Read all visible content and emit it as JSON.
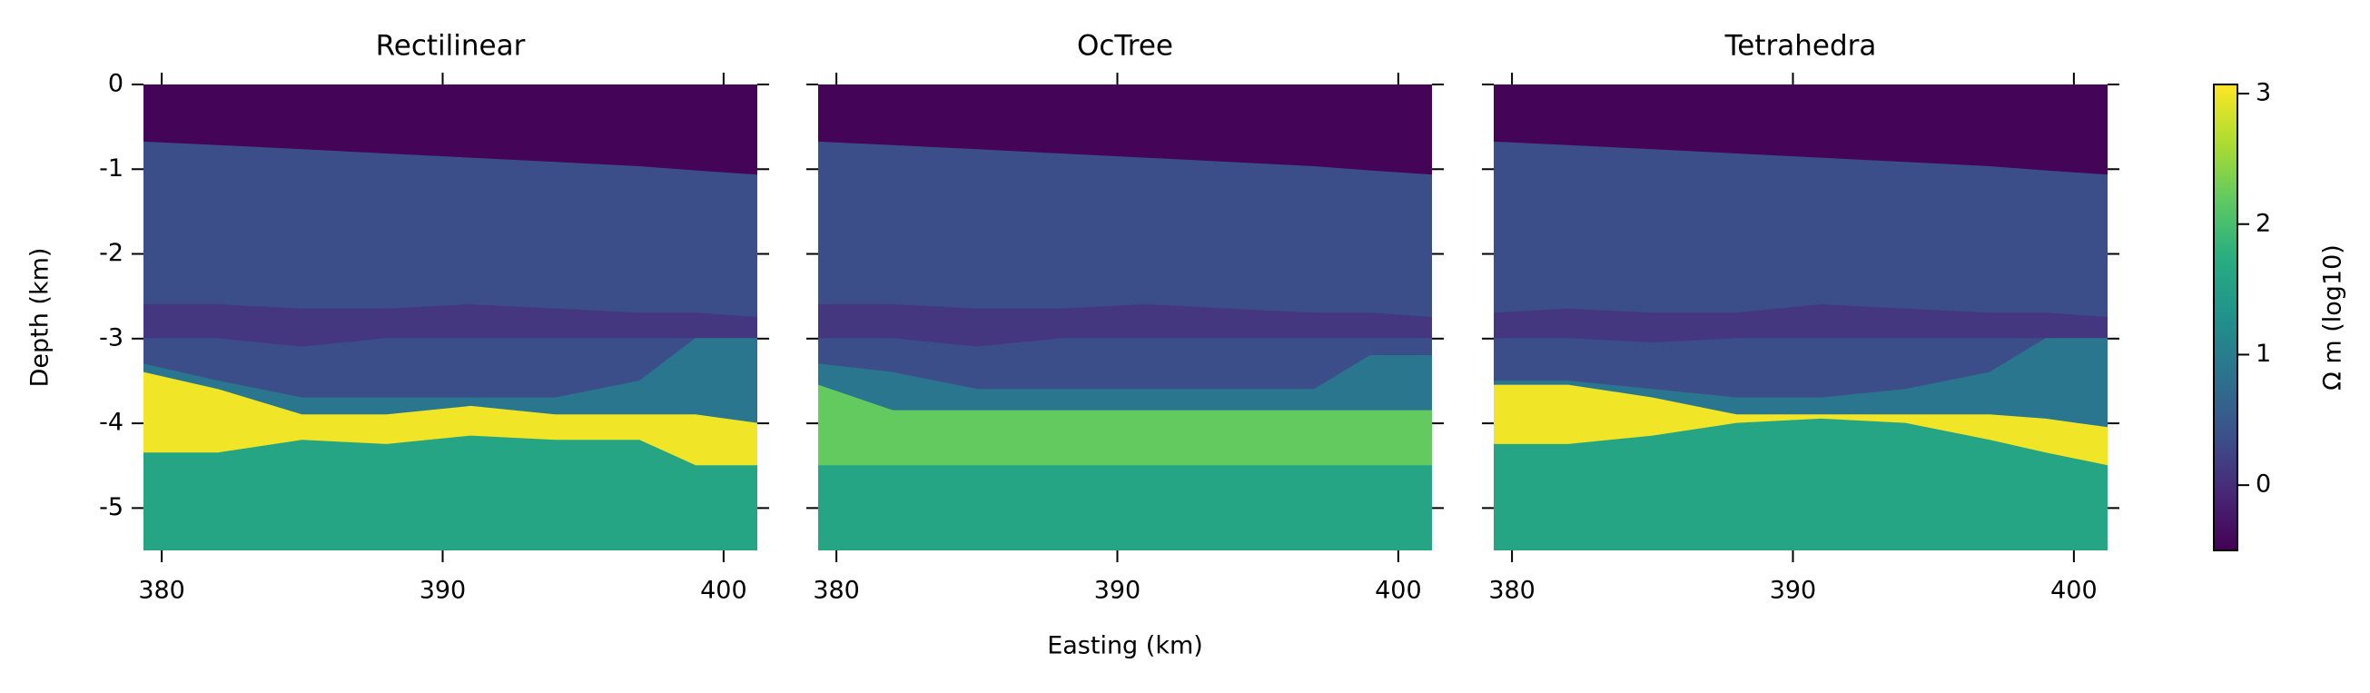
{
  "chart_data": [
    {
      "type": "heatmap",
      "title": "Rectilinear",
      "ylabel": "Depth (km)",
      "show_ytick_labels": true,
      "xlim": [
        379.35,
        401.2
      ],
      "ylim": [
        -5.5,
        0
      ],
      "xticks": [
        380,
        390,
        400
      ],
      "yticks": [
        0,
        -1,
        -2,
        -3,
        -4,
        -5
      ],
      "x": [
        379.35,
        382,
        385,
        388,
        391,
        394,
        397,
        399,
        401.2
      ],
      "layers": [
        {
          "value": -0.45,
          "top": [
            0,
            0,
            0,
            0,
            0,
            0,
            0,
            0,
            0
          ]
        },
        {
          "value": 0.35,
          "top": [
            -0.68,
            -0.72,
            -0.77,
            -0.82,
            -0.87,
            -0.92,
            -0.97,
            -1.02,
            -1.07
          ]
        },
        {
          "value": 0.1,
          "top": [
            -2.6,
            -2.6,
            -2.65,
            -2.65,
            -2.6,
            -2.65,
            -2.7,
            -2.7,
            -2.75
          ]
        },
        {
          "value": 0.35,
          "top": [
            -3.0,
            -3.0,
            -3.1,
            -3.0,
            -3.0,
            -3.0,
            -3.0,
            -3.0,
            -3.0
          ]
        },
        {
          "value": 0.9,
          "top": [
            -3.3,
            -3.5,
            -3.7,
            -3.7,
            -3.7,
            -3.7,
            -3.5,
            -3.0,
            -3.0
          ]
        },
        {
          "value": 3.0,
          "top": [
            -3.4,
            -3.6,
            -3.9,
            -3.9,
            -3.8,
            -3.9,
            -3.9,
            -3.9,
            -4.0
          ]
        },
        {
          "value": 1.6,
          "top": [
            -4.35,
            -4.35,
            -4.2,
            -4.25,
            -4.15,
            -4.2,
            -4.2,
            -4.5,
            -4.5
          ]
        }
      ]
    },
    {
      "type": "heatmap",
      "title": "OcTree",
      "xlabel": "Easting (km)",
      "show_ytick_labels": false,
      "xlim": [
        379.35,
        401.2
      ],
      "ylim": [
        -5.5,
        0
      ],
      "xticks": [
        380,
        390,
        400
      ],
      "yticks": [
        0,
        -1,
        -2,
        -3,
        -4,
        -5
      ],
      "x": [
        379.35,
        382,
        385,
        388,
        391,
        394,
        397,
        399,
        401.2
      ],
      "layers": [
        {
          "value": -0.45,
          "top": [
            0,
            0,
            0,
            0,
            0,
            0,
            0,
            0,
            0
          ]
        },
        {
          "value": 0.35,
          "top": [
            -0.68,
            -0.72,
            -0.77,
            -0.82,
            -0.87,
            -0.92,
            -0.97,
            -1.02,
            -1.07
          ]
        },
        {
          "value": 0.1,
          "top": [
            -2.6,
            -2.6,
            -2.65,
            -2.65,
            -2.6,
            -2.65,
            -2.7,
            -2.7,
            -2.75
          ]
        },
        {
          "value": 0.35,
          "top": [
            -3.0,
            -3.0,
            -3.1,
            -3.0,
            -3.0,
            -3.0,
            -3.0,
            -3.0,
            -3.0
          ]
        },
        {
          "value": 0.9,
          "top": [
            -3.3,
            -3.4,
            -3.6,
            -3.6,
            -3.6,
            -3.6,
            -3.6,
            -3.2,
            -3.2
          ]
        },
        {
          "value": 2.2,
          "top": [
            -3.55,
            -3.85,
            -3.85,
            -3.85,
            -3.85,
            -3.85,
            -3.85,
            -3.85,
            -3.85
          ]
        },
        {
          "value": 1.6,
          "top": [
            -4.5,
            -4.5,
            -4.5,
            -4.5,
            -4.5,
            -4.5,
            -4.5,
            -4.5,
            -4.5
          ]
        }
      ]
    },
    {
      "type": "heatmap",
      "title": "Tetrahedra",
      "show_ytick_labels": false,
      "xlim": [
        379.35,
        401.2
      ],
      "ylim": [
        -5.5,
        0
      ],
      "xticks": [
        380,
        390,
        400
      ],
      "yticks": [
        0,
        -1,
        -2,
        -3,
        -4,
        -5
      ],
      "x": [
        379.35,
        382,
        385,
        388,
        391,
        394,
        397,
        399,
        401.2
      ],
      "layers": [
        {
          "value": -0.45,
          "top": [
            0,
            0,
            0,
            0,
            0,
            0,
            0,
            0,
            0
          ]
        },
        {
          "value": 0.35,
          "top": [
            -0.68,
            -0.72,
            -0.77,
            -0.82,
            -0.87,
            -0.92,
            -0.97,
            -1.02,
            -1.07
          ]
        },
        {
          "value": 0.1,
          "top": [
            -2.7,
            -2.65,
            -2.7,
            -2.7,
            -2.6,
            -2.65,
            -2.7,
            -2.7,
            -2.75
          ]
        },
        {
          "value": 0.35,
          "top": [
            -3.0,
            -3.0,
            -3.05,
            -3.0,
            -3.0,
            -3.0,
            -3.0,
            -3.0,
            -3.0
          ]
        },
        {
          "value": 0.9,
          "top": [
            -3.5,
            -3.5,
            -3.6,
            -3.7,
            -3.7,
            -3.6,
            -3.4,
            -3.0,
            -3.0
          ]
        },
        {
          "value": 3.0,
          "top": [
            -3.55,
            -3.55,
            -3.7,
            -3.9,
            -3.9,
            -3.9,
            -3.9,
            -3.95,
            -4.05
          ]
        },
        {
          "value": 1.6,
          "top": [
            -4.25,
            -4.25,
            -4.15,
            -4.0,
            -3.95,
            -4.0,
            -4.2,
            -4.35,
            -4.5
          ]
        }
      ]
    }
  ],
  "colorbar": {
    "label": "Ω m (log10)",
    "colormap": "viridis",
    "lim": [
      -0.5,
      3.07
    ],
    "ticks": [
      0,
      1,
      2,
      3
    ]
  }
}
